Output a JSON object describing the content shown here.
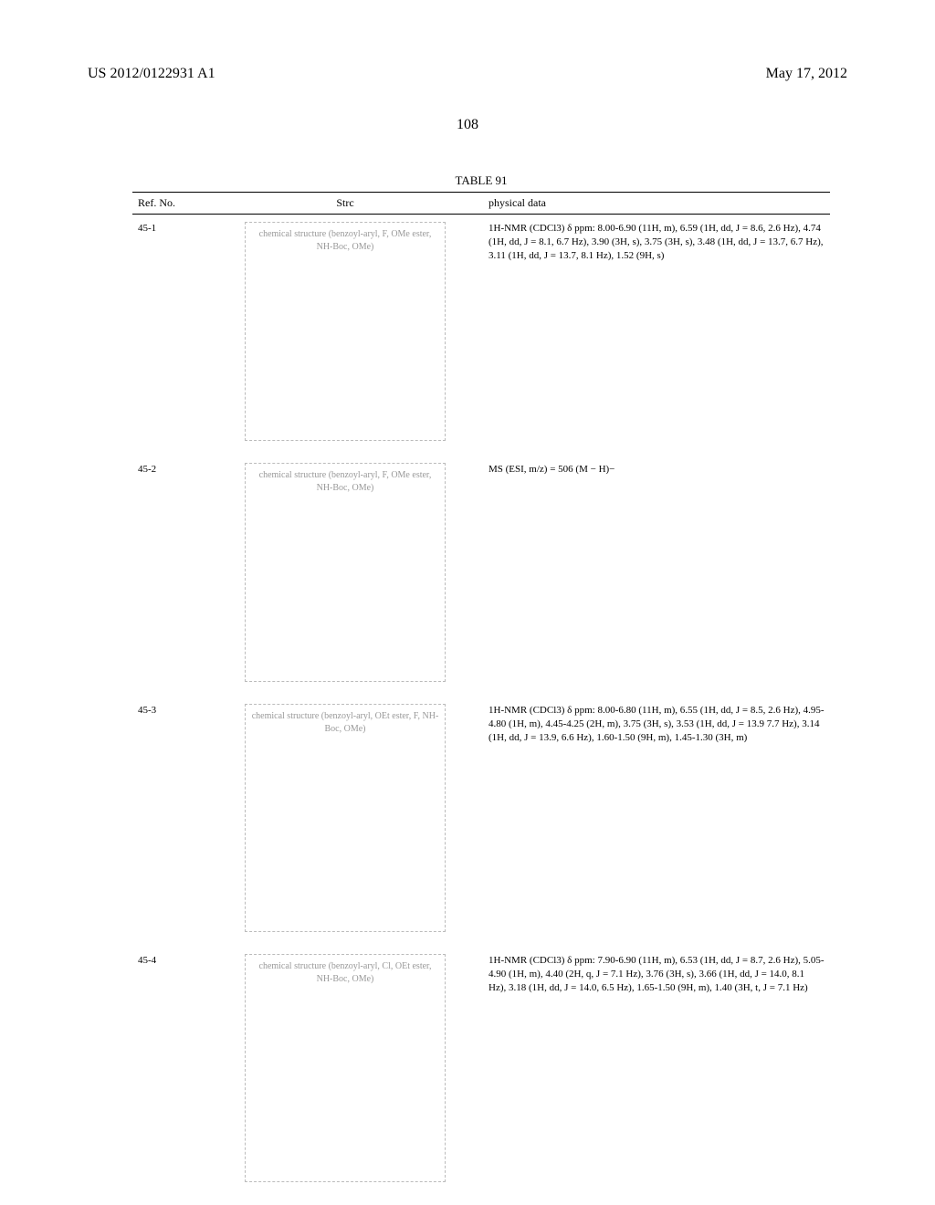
{
  "header": {
    "publication_number": "US 2012/0122931 A1",
    "publication_date": "May 17, 2012",
    "page_number": "108"
  },
  "table": {
    "title": "TABLE 91",
    "columns": [
      "Ref. No.",
      "Strc",
      "physical data"
    ],
    "rows": [
      {
        "ref": "45-1",
        "structure_placeholder": "chemical structure (benzoyl-aryl, F, OMe ester, NH-Boc, OMe)",
        "structure_h": 240,
        "physical": "1H-NMR (CDCl3) δ ppm: 8.00-6.90 (11H, m), 6.59 (1H, dd, J = 8.6, 2.6 Hz), 4.74 (1H, dd, J = 8.1, 6.7 Hz), 3.90 (3H, s), 3.75 (3H, s), 3.48 (1H, dd, J = 13.7, 6.7 Hz), 3.11 (1H, dd, J = 13.7, 8.1 Hz), 1.52 (9H, s)"
      },
      {
        "ref": "45-2",
        "structure_placeholder": "chemical structure (benzoyl-aryl, F, OMe ester, NH-Boc, OMe)",
        "structure_h": 240,
        "physical": "MS (ESI, m/z) = 506 (M − H)−"
      },
      {
        "ref": "45-3",
        "structure_placeholder": "chemical structure (benzoyl-aryl, OEt ester, F, NH-Boc, OMe)",
        "structure_h": 250,
        "physical": "1H-NMR (CDCl3) δ ppm: 8.00-6.80 (11H, m), 6.55 (1H, dd, J = 8.5, 2.6 Hz), 4.95-4.80 (1H, m), 4.45-4.25 (2H, m), 3.75 (3H, s), 3.53 (1H, dd, J = 13.9 7.7 Hz), 3.14 (1H, dd, J = 13.9, 6.6 Hz), 1.60-1.50 (9H, m), 1.45-1.30 (3H, m)"
      },
      {
        "ref": "45-4",
        "structure_placeholder": "chemical structure (benzoyl-aryl, Cl, OEt ester, NH-Boc, OMe)",
        "structure_h": 250,
        "physical": "1H-NMR (CDCl3) δ ppm: 7.90-6.90 (11H, m), 6.53 (1H, dd, J = 8.7, 2.6 Hz), 5.05-4.90 (1H, m), 4.40 (2H, q, J = 7.1 Hz), 3.76 (3H, s), 3.66 (1H, dd, J = 14.0, 8.1 Hz), 3.18 (1H, dd, J = 14.0, 6.5 Hz), 1.65-1.50 (9H, m), 1.40 (3H, t, J = 7.1 Hz)"
      }
    ]
  }
}
